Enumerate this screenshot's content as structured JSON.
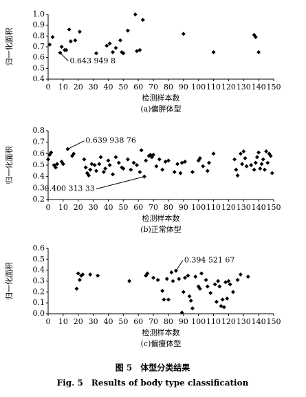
{
  "chart_data": [
    {
      "type": "scatter",
      "subtitle": "(a)偏胖体型",
      "x_label": "检测样本数",
      "y_label": "归一化面积",
      "color": "#000000",
      "xlim": [
        0,
        150
      ],
      "xticks": [
        0,
        10,
        20,
        30,
        40,
        50,
        60,
        70,
        80,
        90,
        100,
        110,
        120,
        130,
        140,
        150
      ],
      "ylim": [
        0.4,
        1.0
      ],
      "yticks": [
        {
          "value": 1,
          "label": "1.0"
        },
        0.9,
        0.8,
        0.7,
        0.6,
        0.5,
        0.4
      ],
      "x": [
        1,
        3,
        8,
        9,
        11,
        12,
        14,
        15,
        18,
        21,
        32,
        39,
        41,
        43,
        45,
        48,
        49,
        50,
        53,
        58,
        59,
        61,
        63,
        90,
        110,
        137,
        138,
        140
      ],
      "values": [
        0.72,
        0.79,
        0.6439498,
        0.7,
        0.67,
        0.67,
        0.86,
        0.75,
        0.76,
        0.84,
        0.64,
        0.71,
        0.73,
        0.65,
        0.69,
        0.76,
        0.65,
        0.64,
        0.85,
        1.0,
        0.66,
        0.67,
        0.95,
        0.82,
        0.65,
        0.81,
        0.79,
        0.65
      ],
      "annotations": [
        {
          "text": "0.643 949 8",
          "x": 8,
          "y": 0.6439498
        }
      ]
    },
    {
      "type": "scatter",
      "subtitle": "(b)正常体型",
      "x_label": "检测样本数",
      "y_label": "归一化面积",
      "color": "#000000",
      "xlim": [
        0,
        150
      ],
      "xticks": [
        0,
        10,
        20,
        30,
        40,
        50,
        60,
        70,
        80,
        90,
        100,
        110,
        120,
        130,
        140,
        150
      ],
      "ylim": [
        0.2,
        0.8
      ],
      "yticks": [
        0.8,
        0.7,
        0.6,
        0.5,
        0.4,
        0.3,
        0.2
      ],
      "x": [
        0,
        1,
        2,
        4,
        5,
        6,
        9,
        10,
        13,
        16,
        17,
        24,
        25,
        26,
        27,
        28,
        29,
        31,
        32,
        34,
        35,
        37,
        38,
        40,
        41,
        43,
        45,
        47,
        49,
        50,
        53,
        55,
        57,
        59,
        61,
        62,
        64,
        65,
        67,
        68,
        69,
        70,
        72,
        74,
        76,
        78,
        80,
        84,
        86,
        88,
        89,
        91,
        96,
        100,
        101,
        103,
        106,
        107,
        110,
        124,
        125,
        126,
        128,
        129,
        130,
        131,
        132,
        135,
        137,
        138,
        139,
        140,
        141,
        142,
        143,
        144,
        145,
        146,
        147,
        148,
        149
      ],
      "values": [
        0.55,
        0.59,
        0.61,
        0.5,
        0.48,
        0.51,
        0.53,
        0.51,
        0.63993876,
        0.58,
        0.6,
        0.55,
        0.48,
        0.43,
        0.41,
        0.46,
        0.51,
        0.5,
        0.45,
        0.51,
        0.57,
        0.44,
        0.47,
        0.54,
        0.5,
        0.42,
        0.57,
        0.52,
        0.48,
        0.47,
        0.55,
        0.46,
        0.52,
        0.5,
        0.44,
        0.63,
        0.40031333,
        0.54,
        0.58,
        0.59,
        0.57,
        0.59,
        0.49,
        0.55,
        0.46,
        0.53,
        0.54,
        0.44,
        0.51,
        0.43,
        0.52,
        0.53,
        0.44,
        0.54,
        0.56,
        0.49,
        0.45,
        0.52,
        0.6,
        0.55,
        0.46,
        0.41,
        0.6,
        0.51,
        0.62,
        0.56,
        0.49,
        0.5,
        0.46,
        0.52,
        0.57,
        0.61,
        0.47,
        0.51,
        0.55,
        0.46,
        0.62,
        0.52,
        0.6,
        0.58,
        0.43
      ],
      "annotations": [
        {
          "text": "0.639 938 76",
          "x": 13,
          "y": 0.63993876
        },
        {
          "text": "0.400 313 33",
          "x": 64,
          "y": 0.40031333
        }
      ]
    },
    {
      "type": "scatter",
      "subtitle": "(c)偏瘦体型",
      "x_label": "检测样本数",
      "y_label": "归一化面积",
      "color": "#000000",
      "xlim": [
        0,
        150
      ],
      "xticks": [
        0,
        10,
        20,
        30,
        40,
        50,
        60,
        70,
        80,
        90,
        100,
        110,
        120,
        130,
        140,
        150
      ],
      "ylim": [
        0,
        0.6
      ],
      "yticks": [
        0.6,
        0.5,
        0.4,
        0.3,
        0.2,
        0.1,
        {
          "value": 0,
          "label": "0.0"
        }
      ],
      "x": [
        19,
        20,
        21,
        22,
        23,
        28,
        33,
        54,
        65,
        66,
        70,
        73,
        76,
        77,
        79,
        80,
        82,
        83,
        85,
        87,
        89,
        90,
        91,
        93,
        94,
        95,
        96,
        98,
        100,
        101,
        102,
        105,
        106,
        108,
        111,
        112,
        113,
        114,
        115,
        116,
        117,
        118,
        119,
        120,
        121,
        123,
        126,
        128,
        133
      ],
      "values": [
        0.23,
        0.37,
        0.31,
        0.35,
        0.36,
        0.36,
        0.35,
        0.3,
        0.35,
        0.37,
        0.33,
        0.31,
        0.21,
        0.13,
        0.32,
        0.13,
        0.38,
        0.3,
        0.39452167,
        0.32,
        0.01,
        0.2,
        0.33,
        0.35,
        0.16,
        0.12,
        0.05,
        0.34,
        0.25,
        0.23,
        0.37,
        0.31,
        0.25,
        0.19,
        0.27,
        0.11,
        0.3,
        0.25,
        0.07,
        0.13,
        0.06,
        0.29,
        0.14,
        0.3,
        0.27,
        0.2,
        0.31,
        0.36,
        0.34
      ],
      "annotations": [
        {
          "text": "0.394 521 67",
          "x": 85,
          "y": 0.39452167
        }
      ]
    }
  ],
  "caption": {
    "zh": "图 5　体型分类结果",
    "en": "Fig. 5　Results of body type classification"
  }
}
